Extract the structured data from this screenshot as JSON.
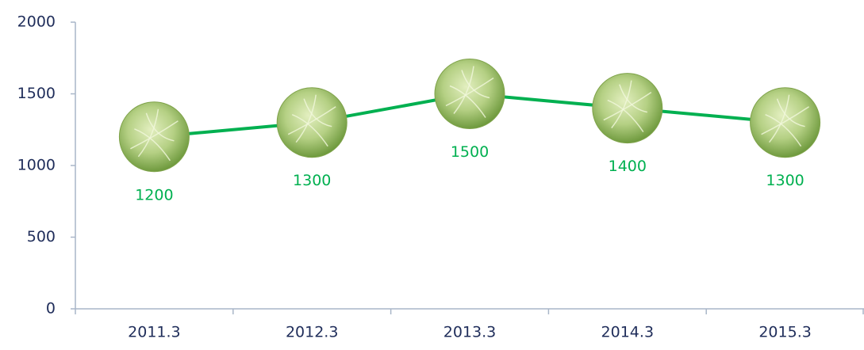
{
  "chart_data": {
    "type": "line",
    "categories": [
      "2011.3",
      "2012.3",
      "2013.3",
      "2014.3",
      "2015.3"
    ],
    "values": [
      1200,
      1300,
      1500,
      1400,
      1300
    ],
    "color": "#00b050",
    "ylim": [
      0,
      2000
    ],
    "yticks": [
      0,
      500,
      1000,
      1500,
      2000
    ]
  }
}
